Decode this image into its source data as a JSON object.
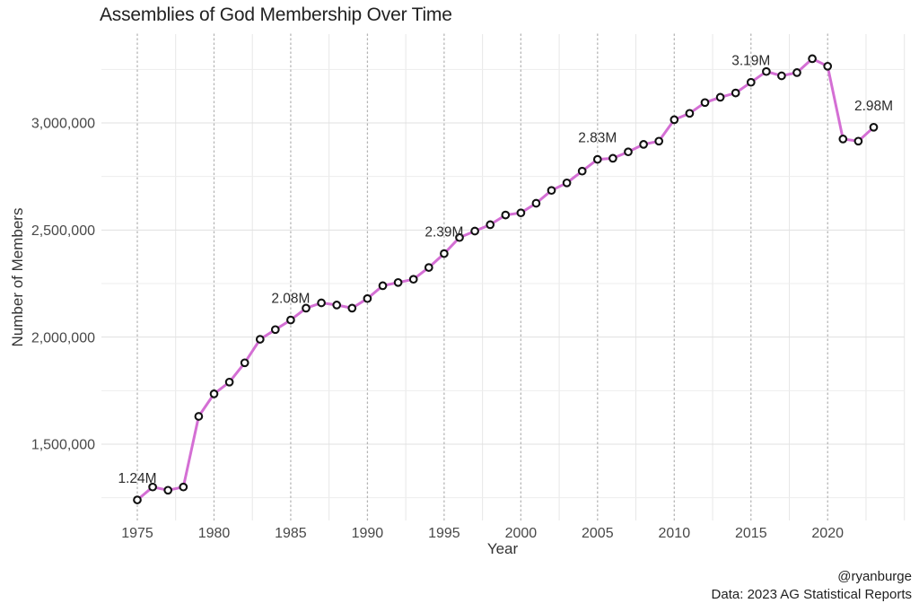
{
  "title": "Assemblies of God Membership Over Time",
  "caption": {
    "author": "@ryanburge",
    "source": "Data: 2023 AG Statistical Reports"
  },
  "colors": {
    "line": "#d46fd4",
    "point_fill": "#ffffff",
    "point_stroke": "#111111",
    "grid_major_h": "#e0e0e0",
    "grid_minor_h": "#ededed",
    "grid_minor_v": "#e7e7e7",
    "grid_major_v_dotted": "#b5b5b5",
    "tick_text": "#484848",
    "annotation_text": "#2b2b2b",
    "background": "#ffffff"
  },
  "chart_data": {
    "type": "line",
    "title": "Assemblies of God Membership Over Time",
    "xlabel": "Year",
    "ylabel": "Number of Members",
    "legend": "none",
    "grid": "major+minor",
    "point_style": "open-circle",
    "xlim": [
      1972.6,
      2025.4
    ],
    "ylim": [
      1140000,
      3400000
    ],
    "x_ticks": [
      1975,
      1980,
      1985,
      1990,
      1995,
      2000,
      2005,
      2010,
      2015,
      2020
    ],
    "x_minor_ticks": [
      1977.5,
      1982.5,
      1987.5,
      1992.5,
      1997.5,
      2002.5,
      2007.5,
      2012.5,
      2017.5,
      2022.5,
      2025
    ],
    "y_ticks": [
      1500000,
      2000000,
      2500000,
      3000000
    ],
    "y_tick_labels": [
      "1,500,000",
      "2,000,000",
      "2,500,000",
      "3,000,000"
    ],
    "y_minor_ticks": [
      1250000,
      1750000,
      2250000,
      2750000,
      3250000
    ],
    "x": [
      1975,
      1976,
      1977,
      1978,
      1979,
      1980,
      1981,
      1982,
      1983,
      1984,
      1985,
      1986,
      1987,
      1988,
      1989,
      1990,
      1991,
      1992,
      1993,
      1994,
      1995,
      1996,
      1997,
      1998,
      1999,
      2000,
      2001,
      2002,
      2003,
      2004,
      2005,
      2006,
      2007,
      2008,
      2009,
      2010,
      2011,
      2012,
      2013,
      2014,
      2015,
      2016,
      2017,
      2018,
      2019,
      2020,
      2021,
      2022,
      2023
    ],
    "values": [
      1240000,
      1300000,
      1285000,
      1300000,
      1630000,
      1735000,
      1790000,
      1880000,
      1990000,
      2035000,
      2080000,
      2135000,
      2160000,
      2150000,
      2135000,
      2180000,
      2240000,
      2255000,
      2270000,
      2325000,
      2390000,
      2465000,
      2495000,
      2525000,
      2570000,
      2580000,
      2625000,
      2685000,
      2720000,
      2775000,
      2830000,
      2835000,
      2865000,
      2900000,
      2915000,
      3015000,
      3045000,
      3095000,
      3120000,
      3140000,
      3190000,
      3240000,
      3220000,
      3235000,
      3300000,
      3265000,
      2925000,
      2915000,
      2980000
    ],
    "annotations": [
      {
        "year": 1975,
        "label": "1.24M"
      },
      {
        "year": 1985,
        "label": "2.08M"
      },
      {
        "year": 1995,
        "label": "2.39M"
      },
      {
        "year": 2005,
        "label": "2.83M"
      },
      {
        "year": 2015,
        "label": "3.19M"
      },
      {
        "year": 2023,
        "label": "2.98M"
      }
    ]
  }
}
